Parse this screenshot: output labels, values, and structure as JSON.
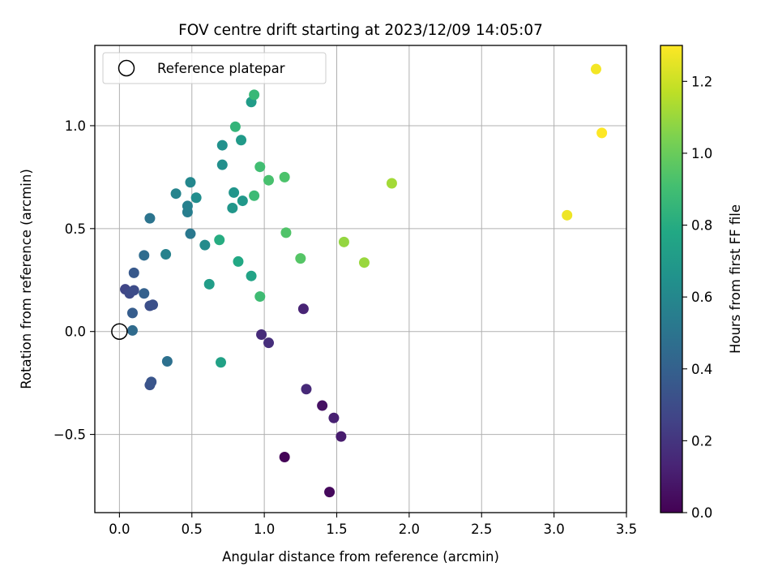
{
  "chart_data": {
    "type": "scatter",
    "title": "FOV centre drift starting at 2023/12/09 14:05:07",
    "xlabel": "Angular distance from reference (arcmin)",
    "ylabel": "Rotation from reference (arcmin)",
    "xlim": [
      -0.17,
      3.5
    ],
    "ylim": [
      -0.88,
      1.39
    ],
    "x_ticks": [
      0.0,
      0.5,
      1.0,
      1.5,
      2.0,
      2.5,
      3.0,
      3.5
    ],
    "x_tick_labels": [
      "0.0",
      "0.5",
      "1.0",
      "1.5",
      "2.0",
      "2.5",
      "3.0",
      "3.5"
    ],
    "y_ticks": [
      -0.5,
      0.0,
      0.5,
      1.0
    ],
    "y_tick_labels": [
      "−0.5",
      "0.0",
      "0.5",
      "1.0"
    ],
    "grid": true,
    "legend": {
      "position": "top-left",
      "entries": [
        "Reference platepar"
      ]
    },
    "reference_point": {
      "x": 0.0,
      "y": 0.0,
      "label": "Reference platepar"
    },
    "colorbar": {
      "label": "Hours from first FF file",
      "colormap": "viridis",
      "range": [
        0.0,
        1.3
      ],
      "ticks": [
        0.0,
        0.2,
        0.4,
        0.6,
        0.8,
        1.0,
        1.2
      ],
      "tick_labels": [
        "0.0",
        "0.2",
        "0.4",
        "0.6",
        "0.8",
        "1.0",
        "1.2"
      ]
    },
    "points": [
      {
        "x": 1.14,
        "y": -0.61,
        "c": 0.01
      },
      {
        "x": 1.45,
        "y": -0.78,
        "c": 0.03
      },
      {
        "x": 1.4,
        "y": -0.36,
        "c": 0.06
      },
      {
        "x": 1.53,
        "y": -0.51,
        "c": 0.1
      },
      {
        "x": 1.48,
        "y": -0.42,
        "c": 0.12
      },
      {
        "x": 1.27,
        "y": 0.11,
        "c": 0.13
      },
      {
        "x": 1.29,
        "y": -0.28,
        "c": 0.15
      },
      {
        "x": 0.98,
        "y": -0.015,
        "c": 0.16
      },
      {
        "x": 1.03,
        "y": -0.055,
        "c": 0.17
      },
      {
        "x": 0.04,
        "y": 0.205,
        "c": 0.27
      },
      {
        "x": 0.07,
        "y": 0.185,
        "c": 0.29
      },
      {
        "x": 0.1,
        "y": 0.2,
        "c": 0.3
      },
      {
        "x": 0.21,
        "y": 0.125,
        "c": 0.31
      },
      {
        "x": 0.23,
        "y": 0.13,
        "c": 0.32
      },
      {
        "x": 0.21,
        "y": -0.26,
        "c": 0.33
      },
      {
        "x": 0.22,
        "y": -0.245,
        "c": 0.34
      },
      {
        "x": 0.1,
        "y": 0.285,
        "c": 0.36
      },
      {
        "x": 0.09,
        "y": 0.09,
        "c": 0.38
      },
      {
        "x": 0.17,
        "y": 0.185,
        "c": 0.4
      },
      {
        "x": 0.09,
        "y": 0.005,
        "c": 0.45
      },
      {
        "x": 0.17,
        "y": 0.37,
        "c": 0.46
      },
      {
        "x": 0.33,
        "y": -0.145,
        "c": 0.48
      },
      {
        "x": 0.21,
        "y": 0.55,
        "c": 0.5
      },
      {
        "x": 0.49,
        "y": 0.475,
        "c": 0.52
      },
      {
        "x": 0.47,
        "y": 0.58,
        "c": 0.55
      },
      {
        "x": 0.47,
        "y": 0.61,
        "c": 0.56
      },
      {
        "x": 0.32,
        "y": 0.375,
        "c": 0.57
      },
      {
        "x": 0.39,
        "y": 0.67,
        "c": 0.58
      },
      {
        "x": 0.49,
        "y": 0.725,
        "c": 0.6
      },
      {
        "x": 0.59,
        "y": 0.42,
        "c": 0.62
      },
      {
        "x": 0.53,
        "y": 0.65,
        "c": 0.63
      },
      {
        "x": 0.71,
        "y": 0.81,
        "c": 0.64
      },
      {
        "x": 0.71,
        "y": 0.905,
        "c": 0.65
      },
      {
        "x": 0.79,
        "y": 0.675,
        "c": 0.67
      },
      {
        "x": 0.78,
        "y": 0.6,
        "c": 0.68
      },
      {
        "x": 0.85,
        "y": 0.635,
        "c": 0.69
      },
      {
        "x": 0.84,
        "y": 0.93,
        "c": 0.7
      },
      {
        "x": 0.91,
        "y": 1.115,
        "c": 0.71
      },
      {
        "x": 0.62,
        "y": 0.23,
        "c": 0.72
      },
      {
        "x": 0.7,
        "y": -0.15,
        "c": 0.74
      },
      {
        "x": 0.91,
        "y": 0.27,
        "c": 0.75
      },
      {
        "x": 0.82,
        "y": 0.34,
        "c": 0.78
      },
      {
        "x": 0.69,
        "y": 0.445,
        "c": 0.8
      },
      {
        "x": 0.8,
        "y": 0.995,
        "c": 0.85
      },
      {
        "x": 0.93,
        "y": 1.15,
        "c": 0.87
      },
      {
        "x": 0.93,
        "y": 0.66,
        "c": 0.88
      },
      {
        "x": 0.97,
        "y": 0.17,
        "c": 0.89
      },
      {
        "x": 0.97,
        "y": 0.8,
        "c": 0.9
      },
      {
        "x": 1.03,
        "y": 0.735,
        "c": 0.92
      },
      {
        "x": 1.14,
        "y": 0.75,
        "c": 0.93
      },
      {
        "x": 1.15,
        "y": 0.48,
        "c": 0.94
      },
      {
        "x": 1.25,
        "y": 0.355,
        "c": 0.95
      },
      {
        "x": 1.55,
        "y": 0.435,
        "c": 1.09
      },
      {
        "x": 1.69,
        "y": 0.335,
        "c": 1.1
      },
      {
        "x": 1.88,
        "y": 0.72,
        "c": 1.12
      },
      {
        "x": 3.09,
        "y": 0.565,
        "c": 1.27
      },
      {
        "x": 3.29,
        "y": 1.275,
        "c": 1.28
      },
      {
        "x": 3.33,
        "y": 0.965,
        "c": 1.3
      }
    ]
  }
}
